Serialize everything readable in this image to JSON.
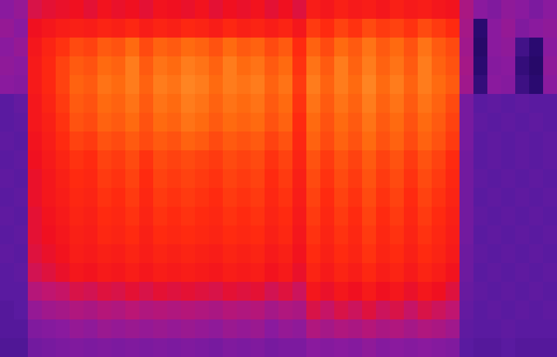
{
  "chart_data": {
    "type": "heatmap",
    "tick_labels": false,
    "zlim": [
      0,
      100
    ],
    "z": [
      [
        50,
        52,
        64,
        66,
        67,
        68,
        66,
        69,
        67,
        68,
        66,
        69,
        68,
        67,
        69,
        66,
        68,
        67,
        69,
        66,
        68,
        65,
        72,
        70,
        73,
        71,
        72,
        70,
        73,
        71,
        72,
        70,
        69,
        56,
        50,
        48,
        51,
        50,
        47,
        50
      ],
      [
        52,
        50,
        68,
        70,
        72,
        73,
        72,
        74,
        73,
        75,
        72,
        74,
        73,
        75,
        74,
        72,
        75,
        73,
        74,
        72,
        74,
        70,
        78,
        76,
        79,
        77,
        80,
        78,
        79,
        77,
        80,
        78,
        76,
        55,
        30,
        50,
        52,
        48,
        50,
        51
      ],
      [
        50,
        52,
        70,
        74,
        77,
        80,
        79,
        82,
        81,
        84,
        80,
        83,
        82,
        84,
        83,
        81,
        84,
        82,
        83,
        80,
        82,
        76,
        83,
        80,
        84,
        82,
        85,
        82,
        84,
        81,
        85,
        82,
        80,
        54,
        28,
        50,
        51,
        35,
        30,
        50
      ],
      [
        51,
        50,
        71,
        75,
        79,
        82,
        81,
        84,
        83,
        86,
        82,
        85,
        84,
        86,
        85,
        83,
        86,
        84,
        85,
        82,
        84,
        77,
        85,
        82,
        86,
        83,
        86,
        83,
        85,
        82,
        86,
        83,
        81,
        55,
        30,
        49,
        50,
        32,
        28,
        51
      ],
      [
        50,
        49,
        71,
        75,
        79,
        83,
        82,
        85,
        84,
        86,
        83,
        86,
        85,
        87,
        86,
        84,
        86,
        85,
        86,
        83,
        85,
        78,
        86,
        83,
        86,
        84,
        87,
        84,
        86,
        83,
        86,
        84,
        82,
        54,
        32,
        50,
        49,
        34,
        30,
        50
      ],
      [
        40,
        42,
        70,
        74,
        78,
        82,
        81,
        84,
        83,
        85,
        82,
        85,
        84,
        86,
        85,
        83,
        85,
        84,
        85,
        82,
        84,
        77,
        85,
        82,
        85,
        83,
        86,
        83,
        85,
        82,
        85,
        83,
        80,
        46,
        40,
        41,
        40,
        41,
        40,
        40
      ],
      [
        40,
        41,
        70,
        73,
        77,
        81,
        80,
        83,
        82,
        84,
        81,
        84,
        83,
        85,
        84,
        82,
        84,
        83,
        84,
        81,
        83,
        76,
        84,
        81,
        84,
        82,
        85,
        82,
        84,
        81,
        84,
        82,
        79,
        46,
        41,
        40,
        41,
        40,
        41,
        40
      ],
      [
        41,
        40,
        69,
        72,
        76,
        79,
        78,
        81,
        80,
        82,
        80,
        82,
        81,
        83,
        82,
        80,
        82,
        81,
        82,
        79,
        81,
        75,
        83,
        80,
        83,
        81,
        84,
        81,
        83,
        80,
        83,
        81,
        78,
        46,
        40,
        41,
        40,
        41,
        40,
        41
      ],
      [
        40,
        41,
        68,
        71,
        74,
        77,
        76,
        79,
        78,
        80,
        77,
        80,
        79,
        80,
        79,
        78,
        80,
        79,
        80,
        77,
        79,
        74,
        81,
        78,
        81,
        79,
        82,
        79,
        81,
        78,
        81,
        79,
        76,
        45,
        40,
        41,
        40,
        41,
        40,
        41
      ],
      [
        41,
        40,
        67,
        70,
        73,
        76,
        75,
        78,
        77,
        79,
        76,
        79,
        78,
        79,
        78,
        77,
        79,
        78,
        79,
        76,
        78,
        73,
        80,
        77,
        80,
        78,
        81,
        78,
        80,
        77,
        80,
        78,
        75,
        45,
        41,
        40,
        41,
        40,
        41,
        40
      ],
      [
        40,
        41,
        67,
        70,
        72,
        75,
        74,
        77,
        76,
        78,
        75,
        78,
        77,
        78,
        77,
        76,
        78,
        77,
        78,
        75,
        77,
        72,
        79,
        76,
        79,
        77,
        80,
        77,
        79,
        76,
        79,
        77,
        74,
        45,
        40,
        41,
        40,
        41,
        40,
        41
      ],
      [
        41,
        40,
        66,
        69,
        71,
        74,
        73,
        76,
        75,
        77,
        74,
        77,
        76,
        77,
        76,
        75,
        77,
        76,
        77,
        74,
        76,
        71,
        78,
        75,
        78,
        76,
        79,
        76,
        78,
        75,
        78,
        76,
        73,
        45,
        41,
        40,
        41,
        40,
        41,
        40
      ],
      [
        40,
        41,
        66,
        68,
        70,
        73,
        72,
        75,
        74,
        76,
        73,
        76,
        75,
        76,
        75,
        74,
        76,
        75,
        76,
        73,
        75,
        70,
        77,
        74,
        77,
        75,
        78,
        75,
        77,
        74,
        77,
        75,
        72,
        45,
        40,
        41,
        40,
        41,
        40,
        41
      ],
      [
        41,
        40,
        65,
        67,
        69,
        72,
        71,
        73,
        72,
        74,
        72,
        74,
        73,
        74,
        73,
        72,
        74,
        73,
        74,
        71,
        73,
        69,
        76,
        73,
        76,
        74,
        77,
        74,
        76,
        73,
        76,
        74,
        71,
        44,
        41,
        40,
        41,
        40,
        41,
        40
      ],
      [
        40,
        41,
        63,
        65,
        67,
        70,
        69,
        71,
        70,
        72,
        70,
        72,
        71,
        72,
        71,
        70,
        72,
        71,
        72,
        69,
        71,
        67,
        74,
        71,
        74,
        72,
        75,
        72,
        74,
        71,
        74,
        72,
        69,
        44,
        40,
        41,
        40,
        41,
        40,
        41
      ],
      [
        40,
        40,
        58,
        60,
        61,
        64,
        63,
        65,
        64,
        66,
        64,
        66,
        65,
        66,
        65,
        64,
        66,
        65,
        66,
        63,
        65,
        62,
        70,
        67,
        70,
        68,
        71,
        68,
        70,
        67,
        70,
        68,
        65,
        43,
        41,
        40,
        41,
        40,
        41,
        40
      ],
      [
        39,
        40,
        52,
        54,
        55,
        57,
        56,
        58,
        57,
        59,
        57,
        58,
        57,
        58,
        57,
        56,
        58,
        57,
        58,
        55,
        57,
        56,
        64,
        61,
        64,
        62,
        65,
        62,
        64,
        61,
        64,
        62,
        60,
        42,
        40,
        41,
        40,
        41,
        40,
        41
      ],
      [
        39,
        39,
        48,
        49,
        50,
        52,
        51,
        53,
        52,
        53,
        52,
        53,
        52,
        53,
        52,
        51,
        53,
        52,
        53,
        50,
        52,
        51,
        57,
        55,
        57,
        56,
        58,
        56,
        57,
        55,
        57,
        56,
        54,
        41,
        40,
        40,
        41,
        40,
        40,
        40
      ],
      [
        38,
        38,
        45,
        46,
        47,
        48,
        47,
        48,
        47,
        48,
        47,
        48,
        47,
        48,
        47,
        46,
        48,
        47,
        48,
        46,
        47,
        47,
        50,
        49,
        50,
        49,
        51,
        49,
        50,
        49,
        50,
        49,
        48,
        40,
        39,
        39,
        40,
        39,
        39,
        39
      ]
    ]
  }
}
